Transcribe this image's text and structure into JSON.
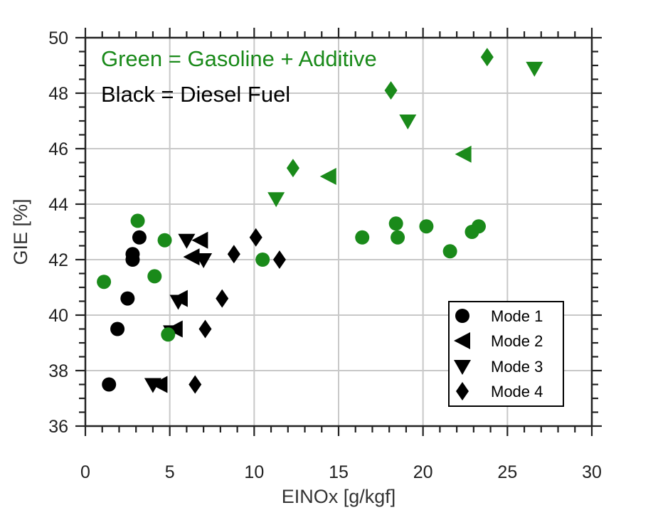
{
  "chart_data": {
    "type": "scatter",
    "xlabel": "EINOx [g/kgf]",
    "ylabel": "GIE [%]",
    "xlim": [
      0,
      30
    ],
    "ylim": [
      36,
      50
    ],
    "xticks": [
      0,
      5,
      10,
      15,
      20,
      25,
      30
    ],
    "yticks": [
      36,
      38,
      40,
      42,
      44,
      46,
      48,
      50
    ],
    "grid": true,
    "legend_position": "bottom-right",
    "annotations": [
      {
        "text": "Green = Gasoline + Additive",
        "color": "#1a8a1a"
      },
      {
        "text": "Black = Diesel Fuel",
        "color": "#000000"
      }
    ],
    "legend": [
      {
        "label": "Mode 1",
        "marker": "circle"
      },
      {
        "label": "Mode 2",
        "marker": "triangle-left"
      },
      {
        "label": "Mode 3",
        "marker": "triangle-down"
      },
      {
        "label": "Mode 4",
        "marker": "diamond"
      }
    ],
    "colors": {
      "gasoline_additive": "#1a8a1a",
      "diesel": "#000000"
    },
    "series": [
      {
        "fuel": "diesel",
        "marker": "circle",
        "x": [
          1.4,
          1.9,
          2.5,
          2.8,
          2.8,
          3.2
        ],
        "y": [
          37.5,
          39.5,
          40.6,
          42.0,
          42.2,
          42.8
        ]
      },
      {
        "fuel": "diesel",
        "marker": "triangle-left",
        "x": [
          4.4,
          5.3,
          5.6,
          6.3,
          6.8
        ],
        "y": [
          37.5,
          39.5,
          40.6,
          42.1,
          42.7
        ]
      },
      {
        "fuel": "diesel",
        "marker": "triangle-down",
        "x": [
          4.0,
          5.1,
          5.5,
          6.0,
          7.0
        ],
        "y": [
          37.5,
          39.4,
          40.5,
          42.7,
          42.0
        ]
      },
      {
        "fuel": "diesel",
        "marker": "diamond",
        "x": [
          6.5,
          7.1,
          8.1,
          8.8,
          10.1,
          11.5
        ],
        "y": [
          37.5,
          39.5,
          40.6,
          42.2,
          42.8,
          42.0
        ]
      },
      {
        "fuel": "gasoline_additive",
        "marker": "circle",
        "x": [
          1.1,
          3.1,
          4.1,
          4.7,
          4.9,
          10.5,
          16.4,
          18.4,
          18.5,
          20.2,
          21.6,
          22.9,
          23.3
        ],
        "y": [
          41.2,
          43.4,
          41.4,
          42.7,
          39.3,
          42.0,
          42.8,
          43.3,
          42.8,
          43.2,
          42.3,
          43.0,
          43.2
        ]
      },
      {
        "fuel": "gasoline_additive",
        "marker": "triangle-left",
        "x": [
          14.4,
          22.4
        ],
        "y": [
          45.0,
          45.8
        ]
      },
      {
        "fuel": "gasoline_additive",
        "marker": "triangle-down",
        "x": [
          11.3,
          19.1,
          26.6
        ],
        "y": [
          44.2,
          47.0,
          48.9
        ]
      },
      {
        "fuel": "gasoline_additive",
        "marker": "diamond",
        "x": [
          12.3,
          18.1,
          23.8
        ],
        "y": [
          45.3,
          48.1,
          49.3
        ]
      }
    ]
  }
}
